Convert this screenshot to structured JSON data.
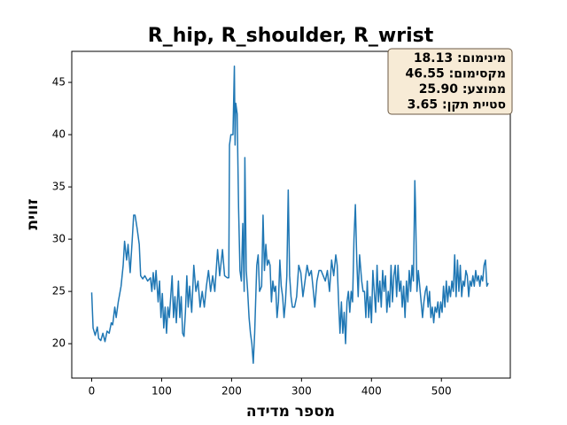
{
  "chart_data": {
    "type": "line",
    "title": "R_hip, R_shoulder, R_wrist",
    "xlabel": "מספר מדידה",
    "ylabel": "זווית",
    "color": "#1f77b4",
    "annotation": [
      "מינימום: 18.13",
      "מקסימום: 46.55",
      "ממוצע: 25.90",
      "סטיית תקן: 3.65"
    ],
    "xlim": [
      -28.5,
      598.5
    ],
    "ylim": [
      16.71,
      47.97
    ],
    "xticks": [
      0,
      100,
      200,
      300,
      400,
      500
    ],
    "yticks": [
      20,
      25,
      30,
      35,
      40,
      45
    ],
    "x": [
      0,
      2,
      5,
      8,
      10,
      13,
      16,
      19,
      22,
      25,
      28,
      30,
      33,
      35,
      38,
      42,
      45,
      47,
      50,
      52,
      55,
      58,
      60,
      62,
      65,
      68,
      70,
      73,
      76,
      80,
      84,
      86,
      88,
      90,
      92,
      95,
      97,
      99,
      101,
      103,
      105,
      107,
      109,
      111,
      113,
      115,
      117,
      119,
      121,
      124,
      126,
      128,
      130,
      132,
      134,
      136,
      138,
      140,
      143,
      146,
      149,
      152,
      155,
      158,
      161,
      164,
      167,
      170,
      173,
      176,
      180,
      183,
      187,
      190,
      194,
      196,
      197,
      199,
      202,
      204,
      205,
      206,
      208,
      210,
      212,
      214,
      216,
      218,
      219,
      221,
      223,
      225,
      227,
      229,
      231,
      233,
      236,
      238,
      240,
      243,
      245,
      247,
      249,
      251,
      253,
      255,
      257,
      259,
      261,
      263,
      265,
      267,
      269,
      271,
      273,
      275,
      277,
      279,
      281,
      283,
      285,
      287,
      290,
      293,
      296,
      299,
      302,
      305,
      308,
      311,
      314,
      317,
      319,
      322,
      325,
      328,
      331,
      334,
      337,
      340,
      343,
      346,
      349,
      351,
      353,
      355,
      357,
      359,
      361,
      363,
      365,
      367,
      369,
      371,
      373,
      375,
      377,
      379,
      381,
      383,
      386,
      388,
      390,
      392,
      394,
      396,
      398,
      400,
      402,
      404,
      406,
      408,
      410,
      412,
      414,
      416,
      418,
      420,
      422,
      424,
      426,
      428,
      430,
      432,
      434,
      436,
      438,
      440,
      442,
      444,
      446,
      448,
      450,
      452,
      454,
      456,
      458,
      460,
      462,
      463,
      465,
      467,
      469,
      471,
      473,
      475,
      477,
      479,
      481,
      483,
      485,
      487,
      489,
      491,
      493,
      495,
      497,
      499,
      501,
      503,
      505,
      507,
      509,
      511,
      513,
      515,
      517,
      519,
      521,
      523,
      525,
      527,
      529,
      531,
      533,
      535,
      537,
      539,
      541,
      543,
      545,
      547,
      549,
      551,
      553,
      555,
      557,
      559,
      561,
      563,
      565,
      567
    ],
    "values": [
      24.9,
      21.5,
      20.8,
      21.6,
      20.5,
      20.3,
      21,
      20.2,
      21.2,
      21,
      22,
      21.8,
      23.5,
      22.5,
      24,
      25.5,
      27.5,
      29.8,
      28,
      29.5,
      26.8,
      30,
      32.3,
      32.3,
      31,
      29.5,
      26.5,
      26.2,
      26.5,
      26,
      26.3,
      25,
      26.8,
      25.2,
      27,
      24,
      26,
      22.5,
      24.8,
      21.5,
      23.5,
      21,
      23.5,
      22.5,
      24.5,
      26.5,
      22.5,
      24.5,
      22,
      26,
      22.5,
      24.5,
      21,
      20.7,
      23,
      26.5,
      23.5,
      25.5,
      23,
      27.5,
      25,
      26,
      23.5,
      25,
      23.5,
      25.5,
      27,
      25,
      26.5,
      25,
      29,
      26.5,
      29,
      26.5,
      26.3,
      26.3,
      39,
      40,
      40,
      46.55,
      39,
      43,
      42,
      33,
      27,
      26,
      31.5,
      25,
      37.8,
      27,
      25,
      22.5,
      21,
      20,
      18.13,
      21,
      27.5,
      28.5,
      25,
      25.5,
      32.3,
      27,
      29.5,
      27.5,
      28,
      27.5,
      24,
      26,
      25,
      25.5,
      22.5,
      24,
      28,
      25.5,
      24.5,
      22.5,
      24,
      26.5,
      34.7,
      26.5,
      24.5,
      23.5,
      23.5,
      24.5,
      27.5,
      26.8,
      24.5,
      26,
      27.5,
      26.5,
      27,
      25,
      23.5,
      26,
      27,
      27,
      26.5,
      26,
      27,
      25,
      28,
      26.5,
      28.5,
      27.5,
      24,
      21,
      24,
      21,
      23,
      20,
      24,
      25,
      23,
      25,
      24,
      30,
      33.3,
      28,
      24.5,
      28.5,
      26,
      25,
      25,
      22.5,
      26,
      22.5,
      24.5,
      22,
      27,
      25,
      23,
      27.5,
      24,
      26,
      23.5,
      27,
      25,
      26.5,
      23,
      25,
      23.5,
      27.5,
      24,
      26.5,
      27.5,
      24.5,
      27.5,
      25,
      26,
      23.5,
      25.5,
      22.5,
      26,
      24,
      27,
      25,
      27.5,
      26,
      35.6,
      33,
      25,
      27,
      25.5,
      24,
      22.5,
      24,
      25,
      25.5,
      23.5,
      25,
      22.5,
      23.5,
      22,
      23.5,
      23,
      24,
      22.5,
      24,
      23,
      25.5,
      23.5,
      26,
      24,
      25.5,
      24.5,
      26,
      25,
      28.5,
      24.5,
      28,
      25,
      27.5,
      24.5,
      26,
      25.5,
      27,
      26.5,
      24.5,
      26,
      25.5,
      26.5,
      25.5,
      27,
      26,
      26.5,
      25.5,
      26.5,
      26,
      27.5,
      28,
      25.5,
      25.8
    ]
  }
}
